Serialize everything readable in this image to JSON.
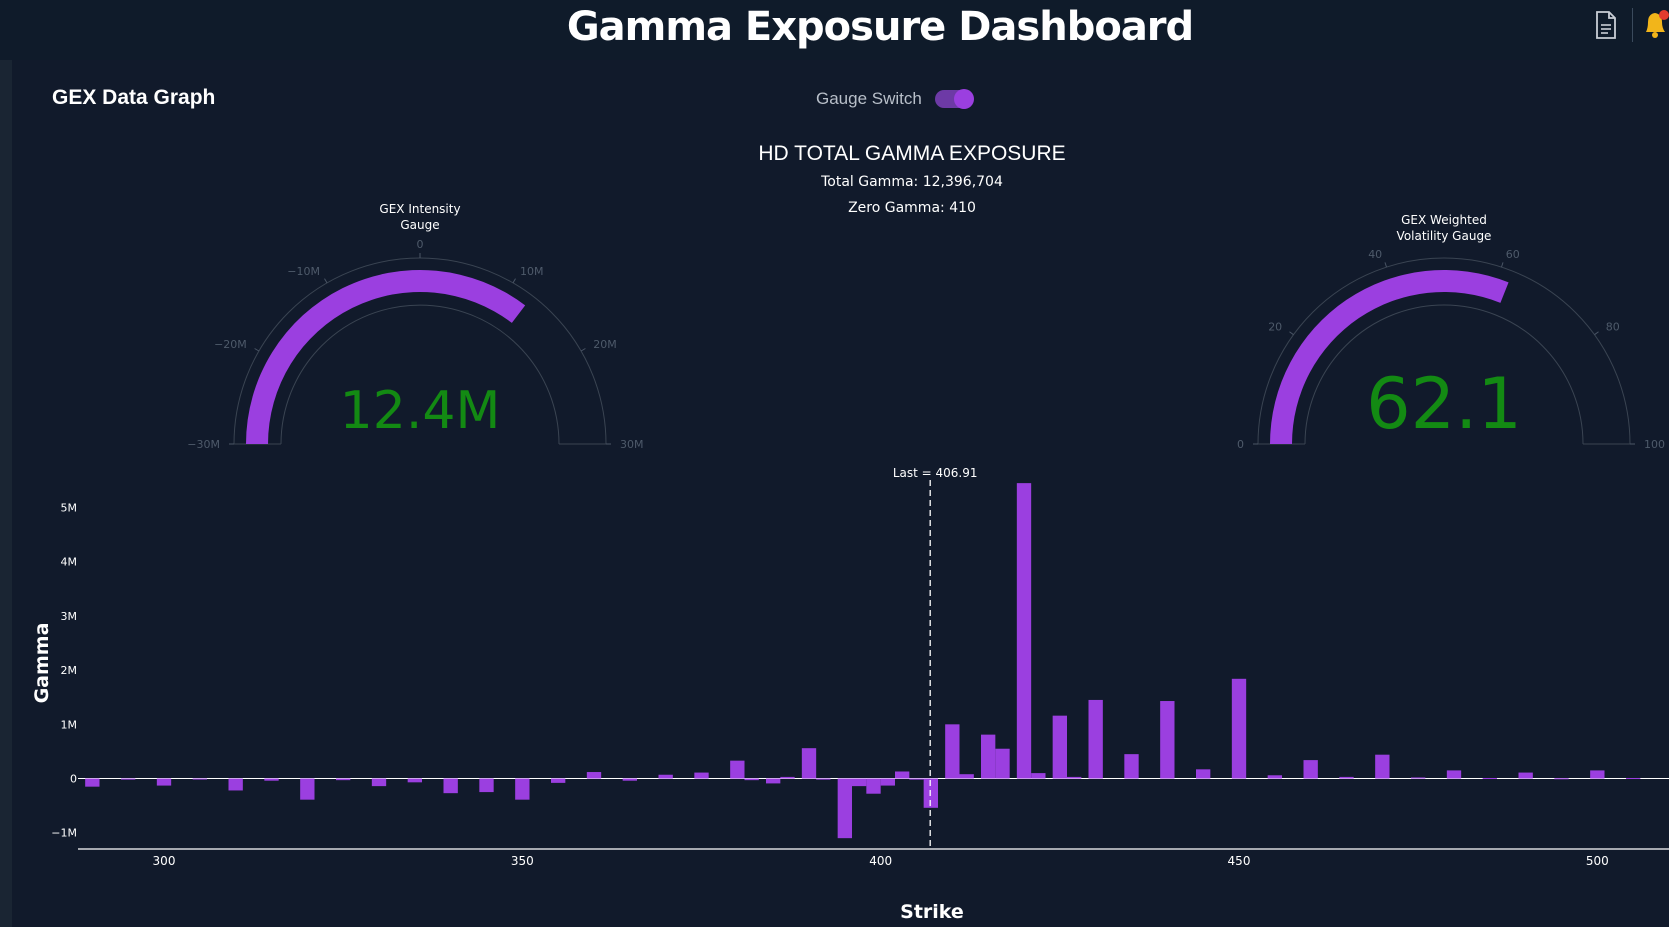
{
  "header": {
    "title": "Gamma Exposure Dashboard",
    "doc_icon": "document-icon",
    "bell_icon": "bell-icon"
  },
  "panel": {
    "title": "GEX Data Graph",
    "switch_label": "Gauge Switch",
    "switch_on": true
  },
  "colors": {
    "accent": "#9b3fe0",
    "gauge_value": "#138a13",
    "background": "#111a2b"
  },
  "chart_data": {
    "type": "bar",
    "title": "HD TOTAL GAMMA EXPOSURE",
    "subtitle_lines": [
      "Total Gamma: 12,396,704",
      "Zero Gamma: 410"
    ],
    "xlabel": "Strike",
    "ylabel": "Gamma",
    "xlim": [
      288,
      510
    ],
    "ylim": [
      -1300000,
      5600000
    ],
    "xticks": [
      300,
      350,
      400,
      450,
      500
    ],
    "yticks": [
      {
        "value": 5000000,
        "label": "5M"
      },
      {
        "value": 4000000,
        "label": "4M"
      },
      {
        "value": 3000000,
        "label": "3M"
      },
      {
        "value": 2000000,
        "label": "2M"
      },
      {
        "value": 1000000,
        "label": "1M"
      },
      {
        "value": 0,
        "label": "0"
      },
      {
        "value": -1000000,
        "label": "−1M"
      }
    ],
    "last_price": 406.91,
    "last_label": "Last = 406.91",
    "bars": [
      {
        "x": 290,
        "y": -150000
      },
      {
        "x": 295,
        "y": -20000
      },
      {
        "x": 300,
        "y": -130000
      },
      {
        "x": 305,
        "y": -15000
      },
      {
        "x": 310,
        "y": -220000
      },
      {
        "x": 315,
        "y": -40000
      },
      {
        "x": 320,
        "y": -390000
      },
      {
        "x": 325,
        "y": -30000
      },
      {
        "x": 330,
        "y": -140000
      },
      {
        "x": 335,
        "y": -70000
      },
      {
        "x": 340,
        "y": -270000
      },
      {
        "x": 345,
        "y": -250000
      },
      {
        "x": 350,
        "y": -390000
      },
      {
        "x": 355,
        "y": -80000
      },
      {
        "x": 360,
        "y": 120000
      },
      {
        "x": 365,
        "y": -40000
      },
      {
        "x": 370,
        "y": 70000
      },
      {
        "x": 375,
        "y": 110000
      },
      {
        "x": 380,
        "y": 330000
      },
      {
        "x": 382,
        "y": -30000
      },
      {
        "x": 385,
        "y": -90000
      },
      {
        "x": 387,
        "y": 30000
      },
      {
        "x": 390,
        "y": 560000
      },
      {
        "x": 392,
        "y": -20000
      },
      {
        "x": 395,
        "y": -1100000
      },
      {
        "x": 397,
        "y": -140000
      },
      {
        "x": 399,
        "y": -280000
      },
      {
        "x": 401,
        "y": -130000
      },
      {
        "x": 403,
        "y": 130000
      },
      {
        "x": 405,
        "y": -20000
      },
      {
        "x": 407,
        "y": -540000
      },
      {
        "x": 410,
        "y": 1000000
      },
      {
        "x": 412,
        "y": 80000
      },
      {
        "x": 415,
        "y": 810000
      },
      {
        "x": 417,
        "y": 550000
      },
      {
        "x": 420,
        "y": 5450000
      },
      {
        "x": 422,
        "y": 100000
      },
      {
        "x": 425,
        "y": 1160000
      },
      {
        "x": 427,
        "y": 30000
      },
      {
        "x": 430,
        "y": 1450000
      },
      {
        "x": 435,
        "y": 450000
      },
      {
        "x": 440,
        "y": 1430000
      },
      {
        "x": 445,
        "y": 170000
      },
      {
        "x": 450,
        "y": 1840000
      },
      {
        "x": 455,
        "y": 60000
      },
      {
        "x": 460,
        "y": 340000
      },
      {
        "x": 465,
        "y": 30000
      },
      {
        "x": 470,
        "y": 440000
      },
      {
        "x": 475,
        "y": 20000
      },
      {
        "x": 480,
        "y": 150000
      },
      {
        "x": 485,
        "y": 10000
      },
      {
        "x": 490,
        "y": 110000
      },
      {
        "x": 495,
        "y": 5000
      },
      {
        "x": 500,
        "y": 150000
      },
      {
        "x": 505,
        "y": 10000
      }
    ],
    "gauges": [
      {
        "title_lines": [
          "GEX Intensity",
          "Gauge"
        ],
        "min": -30000000,
        "max": 30000000,
        "value": 12396704,
        "value_label": "12.4M",
        "ticks": [
          {
            "value": -30000000,
            "label": "−30M"
          },
          {
            "value": -20000000,
            "label": "−20M"
          },
          {
            "value": -10000000,
            "label": "−10M"
          },
          {
            "value": 0,
            "label": "0"
          },
          {
            "value": 10000000,
            "label": "10M"
          },
          {
            "value": 20000000,
            "label": "20M"
          },
          {
            "value": 30000000,
            "label": "30M"
          }
        ]
      },
      {
        "title_lines": [
          "GEX Weighted",
          "Volatility Gauge"
        ],
        "min": 0,
        "max": 100,
        "value": 62.1,
        "value_label": "62.1",
        "ticks": [
          {
            "value": 0,
            "label": "0"
          },
          {
            "value": 20,
            "label": "20"
          },
          {
            "value": 40,
            "label": "40"
          },
          {
            "value": 60,
            "label": "60"
          },
          {
            "value": 80,
            "label": "80"
          },
          {
            "value": 100,
            "label": "100"
          }
        ]
      }
    ]
  }
}
